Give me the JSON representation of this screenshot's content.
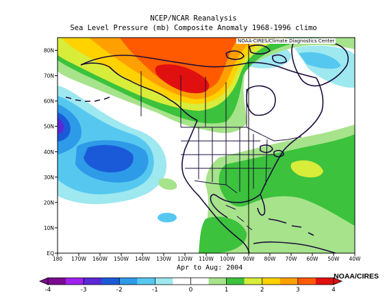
{
  "title": "NCEP/NCAR Reanalysis",
  "subtitle": "Sea Level Pressure (mb) Composite Anomaly 1968-1996 climo",
  "credit": "NOAA-CIRES/Climate Diagnostics Center",
  "period_label": "Apr to Aug: 2004",
  "brand": "NOAA/CIRES",
  "map": {
    "region": "North America and North Pacific",
    "lon_range": [
      -180,
      -40
    ],
    "lat_range": [
      0,
      85
    ],
    "lon_ticks": [
      "180",
      "170W",
      "160W",
      "150W",
      "140W",
      "130W",
      "120W",
      "110W",
      "100W",
      "90W",
      "80W",
      "70W",
      "60W",
      "50W",
      "40W"
    ],
    "lat_ticks": [
      "EQ",
      "10N",
      "20N",
      "30N",
      "40N",
      "50N",
      "60N",
      "70N",
      "80N"
    ],
    "variable": "Sea Level Pressure anomaly",
    "units": "mb"
  },
  "colorbar": {
    "ticks": [
      "-4",
      "-3",
      "-2",
      "-1",
      "0",
      "1",
      "2",
      "3",
      "4"
    ],
    "range": [
      -4,
      4
    ],
    "colors": [
      "#7a0a8f",
      "#a020f0",
      "#5a28d8",
      "#1a5ad8",
      "#2e9be8",
      "#56c8f0",
      "#9ee8f0",
      "#ffffff",
      "#ffffff",
      "#a6e38a",
      "#3cc23c",
      "#d8ec3a",
      "#ffd200",
      "#ffa000",
      "#ff5a00",
      "#e01010"
    ]
  }
}
